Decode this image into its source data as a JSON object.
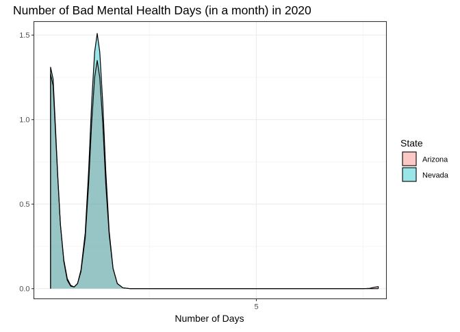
{
  "chart_data": {
    "type": "area",
    "title": "Number of Bad Mental Health Days (in a month) in 2020",
    "xlabel": "Number of Days",
    "ylabel": "",
    "xlim": [
      -0.2,
      8.04
    ],
    "ylim": [
      -0.06,
      1.58
    ],
    "x_ticks": [
      5
    ],
    "x_tick_labels": [
      "5"
    ],
    "y_ticks": [
      0.0,
      0.5,
      1.0,
      1.5
    ],
    "y_tick_labels": [
      "0.0",
      "0.5",
      "1.0",
      "1.5"
    ],
    "grid": true,
    "legend_position": "right",
    "legend_title": "State",
    "series": [
      {
        "name": "Arizona",
        "fill": "#f8766d",
        "points": [
          [
            0.19,
            1.27
          ],
          [
            0.25,
            1.2
          ],
          [
            0.3,
            0.95
          ],
          [
            0.36,
            0.65
          ],
          [
            0.42,
            0.38
          ],
          [
            0.5,
            0.17
          ],
          [
            0.58,
            0.06
          ],
          [
            0.66,
            0.02
          ],
          [
            0.74,
            0.01
          ],
          [
            0.82,
            0.03
          ],
          [
            0.9,
            0.1
          ],
          [
            1.0,
            0.3
          ],
          [
            1.08,
            0.62
          ],
          [
            1.15,
            0.98
          ],
          [
            1.22,
            1.25
          ],
          [
            1.28,
            1.35
          ],
          [
            1.34,
            1.25
          ],
          [
            1.41,
            0.98
          ],
          [
            1.48,
            0.62
          ],
          [
            1.56,
            0.32
          ],
          [
            1.65,
            0.12
          ],
          [
            1.75,
            0.03
          ],
          [
            1.88,
            0.005
          ],
          [
            2.05,
            0.0
          ],
          [
            7.5,
            0.0
          ],
          [
            7.65,
            0.002
          ],
          [
            7.75,
            0.008
          ],
          [
            7.85,
            0.012
          ]
        ]
      },
      {
        "name": "Nevada",
        "fill": "#00bfc4",
        "points": [
          [
            0.19,
            1.31
          ],
          [
            0.25,
            1.24
          ],
          [
            0.3,
            0.98
          ],
          [
            0.36,
            0.66
          ],
          [
            0.42,
            0.38
          ],
          [
            0.5,
            0.16
          ],
          [
            0.58,
            0.05
          ],
          [
            0.66,
            0.015
          ],
          [
            0.74,
            0.01
          ],
          [
            0.82,
            0.03
          ],
          [
            0.9,
            0.11
          ],
          [
            1.0,
            0.33
          ],
          [
            1.08,
            0.7
          ],
          [
            1.15,
            1.1
          ],
          [
            1.22,
            1.4
          ],
          [
            1.28,
            1.51
          ],
          [
            1.34,
            1.4
          ],
          [
            1.41,
            1.1
          ],
          [
            1.48,
            0.7
          ],
          [
            1.56,
            0.34
          ],
          [
            1.65,
            0.12
          ],
          [
            1.75,
            0.03
          ],
          [
            1.88,
            0.005
          ],
          [
            2.05,
            0.0
          ],
          [
            7.5,
            0.0
          ],
          [
            7.65,
            0.0
          ],
          [
            7.85,
            0.0
          ]
        ]
      }
    ]
  }
}
